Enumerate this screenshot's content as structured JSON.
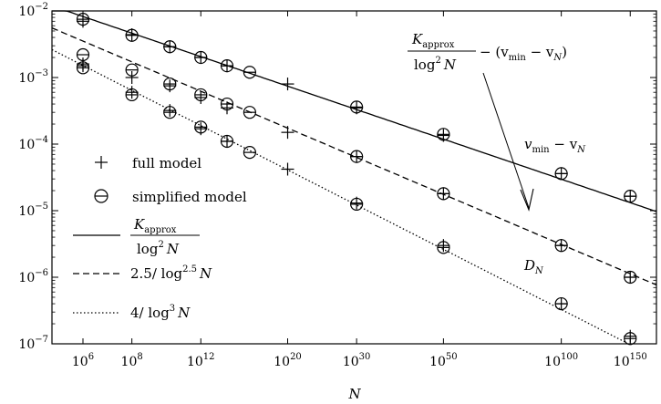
{
  "chart_data": {
    "type": "scatter",
    "title": "",
    "xlabel": "N",
    "ylabel": "",
    "x_scale": "log",
    "y_scale": "log",
    "xlim": [
      100000.0,
      1e+175
    ],
    "ylim": [
      1e-07,
      0.01
    ],
    "x_ticks": [
      {
        "value": 1000000.0,
        "base": "10",
        "exp": "6"
      },
      {
        "value": 100000000.0,
        "base": "10",
        "exp": "8"
      },
      {
        "value": 1000000000000.0,
        "base": "10",
        "exp": "12"
      },
      {
        "value": 1e+20,
        "base": "10",
        "exp": "20"
      },
      {
        "value": 1e+30,
        "base": "10",
        "exp": "30"
      },
      {
        "value": 1e+50,
        "base": "10",
        "exp": "50"
      },
      {
        "value": 1e+100,
        "base": "10",
        "exp": "100"
      },
      {
        "value": 1e+150,
        "base": "10",
        "exp": "150"
      }
    ],
    "y_ticks": [
      {
        "value": 0.01,
        "base": "10",
        "exp": "−2"
      },
      {
        "value": 0.001,
        "base": "10",
        "exp": "−3"
      },
      {
        "value": 0.0001,
        "base": "10",
        "exp": "−4"
      },
      {
        "value": 1e-05,
        "base": "10",
        "exp": "−5"
      },
      {
        "value": 1e-06,
        "base": "10",
        "exp": "−6"
      },
      {
        "value": 1e-07,
        "base": "10",
        "exp": "−7"
      }
    ],
    "grid": false,
    "legend_position": "left",
    "series": [
      {
        "name": "full model",
        "marker": "plus",
        "groups": [
          {
            "label": "v_min − v_N",
            "points": [
              {
                "x": 1000000.0,
                "y": 0.007
              },
              {
                "x": 100000000.0,
                "y": 0.0044
              },
              {
                "x": 10000000000.0,
                "y": 0.0029
              },
              {
                "x": 1000000000000.0,
                "y": 0.002
              },
              {
                "x": 100000000000000.0,
                "y": 0.0015
              },
              {
                "x": 1e+20,
                "y": 0.0008
              },
              {
                "x": 1e+30,
                "y": 0.00035
              },
              {
                "x": 1e+50,
                "y": 0.000135
              },
              {
                "x": 1e+100,
                "y": 3.6e-05
              },
              {
                "x": 1e+150,
                "y": 1.65e-05
              }
            ]
          },
          {
            "label": "K_approx/log^2 N − (v_min − v_N)",
            "points": [
              {
                "x": 1000000.0,
                "y": 0.0015
              },
              {
                "x": 100000000.0,
                "y": 0.001
              },
              {
                "x": 10000000000.0,
                "y": 0.00075
              },
              {
                "x": 1000000000000.0,
                "y": 0.0005
              },
              {
                "x": 100000000000000.0,
                "y": 0.00035
              },
              {
                "x": 1e+20,
                "y": 0.00015
              },
              {
                "x": 1e+30,
                "y": 6.5e-05
              },
              {
                "x": 1e+50,
                "y": 1.8e-05
              },
              {
                "x": 1e+100,
                "y": 3e-06
              },
              {
                "x": 1e+150,
                "y": 1e-06
              }
            ]
          },
          {
            "label": "D_N",
            "points": [
              {
                "x": 1000000.0,
                "y": 0.0016
              },
              {
                "x": 100000000.0,
                "y": 0.0006
              },
              {
                "x": 10000000000.0,
                "y": 0.00032
              },
              {
                "x": 1000000000000.0,
                "y": 0.00017
              },
              {
                "x": 100000000000000.0,
                "y": 0.00011
              },
              {
                "x": 1e+20,
                "y": 4.2e-05
              },
              {
                "x": 1e+30,
                "y": 1.3e-05
              },
              {
                "x": 1e+50,
                "y": 3e-06
              },
              {
                "x": 1e+100,
                "y": 4e-07
              },
              {
                "x": 1e+150,
                "y": 1.3e-07
              }
            ]
          }
        ]
      },
      {
        "name": "simplified model",
        "marker": "circle",
        "groups": [
          {
            "label": "v_min − v_N",
            "points": [
              {
                "x": 1000000.0,
                "y": 0.0075
              },
              {
                "x": 100000000.0,
                "y": 0.0043
              },
              {
                "x": 10000000000.0,
                "y": 0.0029
              },
              {
                "x": 1000000000000.0,
                "y": 0.002
              },
              {
                "x": 100000000000000.0,
                "y": 0.0015
              },
              {
                "x": 1e+16,
                "y": 0.0012
              },
              {
                "x": 1e+30,
                "y": 0.00036
              },
              {
                "x": 1e+50,
                "y": 0.00014
              },
              {
                "x": 1e+100,
                "y": 3.6e-05
              },
              {
                "x": 1e+150,
                "y": 1.65e-05
              }
            ]
          },
          {
            "label": "K_approx/log^2 N − (v_min − v_N)",
            "points": [
              {
                "x": 1000000.0,
                "y": 0.0022
              },
              {
                "x": 100000000.0,
                "y": 0.0013
              },
              {
                "x": 10000000000.0,
                "y": 0.0008
              },
              {
                "x": 1000000000000.0,
                "y": 0.00055
              },
              {
                "x": 100000000000000.0,
                "y": 0.0004
              },
              {
                "x": 1e+16,
                "y": 0.0003
              },
              {
                "x": 1e+30,
                "y": 6.5e-05
              },
              {
                "x": 1e+50,
                "y": 1.8e-05
              },
              {
                "x": 1e+100,
                "y": 3e-06
              },
              {
                "x": 1e+150,
                "y": 1e-06
              }
            ]
          },
          {
            "label": "D_N",
            "points": [
              {
                "x": 1000000.0,
                "y": 0.0014
              },
              {
                "x": 100000000.0,
                "y": 0.00055
              },
              {
                "x": 10000000000.0,
                "y": 0.0003
              },
              {
                "x": 1000000000000.0,
                "y": 0.00018
              },
              {
                "x": 100000000000000.0,
                "y": 0.00011
              },
              {
                "x": 1e+16,
                "y": 7.5e-05
              },
              {
                "x": 1e+30,
                "y": 1.25e-05
              },
              {
                "x": 1e+50,
                "y": 2.8e-06
              },
              {
                "x": 1e+100,
                "y": 4e-07
              },
              {
                "x": 1e+150,
                "y": 1.2e-07
              }
            ]
          }
        ]
      }
    ],
    "curves": [
      {
        "name": "K_approx / log^2 N",
        "style": "solid",
        "power": 2,
        "coef": 1.574
      },
      {
        "name": "2.5 / log^2.5 N",
        "style": "dashed",
        "power": 2.5,
        "coef": 2.5
      },
      {
        "name": "4 / log^3 N",
        "style": "dotted",
        "power": 3,
        "coef": 4
      }
    ],
    "legend": {
      "full_model": "full model",
      "simplified_model": "simplified model",
      "solid_num": "K",
      "solid_num_sub": "approx",
      "solid_den": "log",
      "solid_den_sup": "2",
      "solid_den_var": "N",
      "dashed_coef": "2.5/ log",
      "dashed_sup": "2.5",
      "dashed_var": "N",
      "dotted_coef": "4/ log",
      "dotted_sup": "3",
      "dotted_var": "N"
    },
    "annotations": {
      "top_num": "K",
      "top_num_sub": "approx",
      "top_den": "log",
      "top_den_sup": "2",
      "top_den_var": "N",
      "top_rest": "− (v",
      "top_rest_sub1": "min",
      "top_rest_mid": " − v",
      "top_rest_sub2": "N",
      "top_rest_end": ")",
      "vmin_v": "v",
      "vmin_sub": "min",
      "vmin_mid": " − v",
      "vmin_sub2": "N",
      "dn": "D",
      "dn_sub": "N"
    }
  }
}
